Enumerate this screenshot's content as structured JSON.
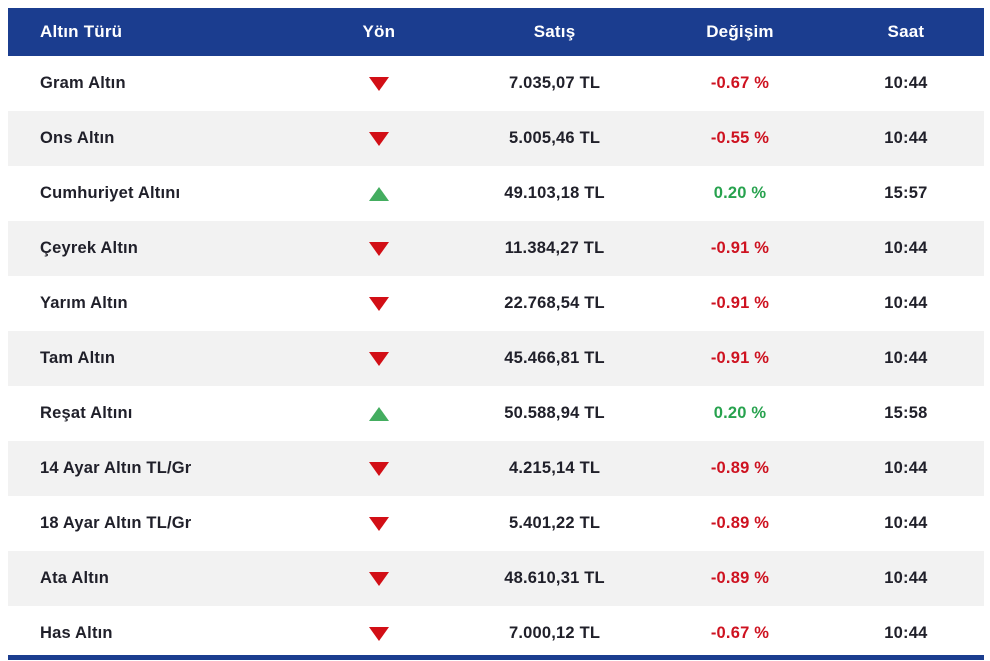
{
  "colors": {
    "header_bg": "#1b3d8f",
    "row_alt_bg": "#f2f2f2",
    "text": "#20202a",
    "down_arrow": "#d20f16",
    "down_text": "#ce1220",
    "up_arrow": "#44ad60",
    "up_text": "#27a24e"
  },
  "table": {
    "columns": [
      {
        "key": "type",
        "label": "Altın Türü"
      },
      {
        "key": "direction",
        "label": "Yön"
      },
      {
        "key": "price",
        "label": "Satış"
      },
      {
        "key": "change",
        "label": "Değişim"
      },
      {
        "key": "time",
        "label": "Saat"
      }
    ],
    "rows": [
      {
        "type": "Gram Altın",
        "direction": "down",
        "price": "7.035,07 TL",
        "change": "-0.67 %",
        "time": "10:44"
      },
      {
        "type": "Ons Altın",
        "direction": "down",
        "price": "5.005,46 TL",
        "change": "-0.55 %",
        "time": "10:44"
      },
      {
        "type": "Cumhuriyet Altını",
        "direction": "up",
        "price": "49.103,18 TL",
        "change": "0.20 %",
        "time": "15:57"
      },
      {
        "type": "Çeyrek Altın",
        "direction": "down",
        "price": "11.384,27 TL",
        "change": "-0.91 %",
        "time": "10:44"
      },
      {
        "type": "Yarım Altın",
        "direction": "down",
        "price": "22.768,54 TL",
        "change": "-0.91 %",
        "time": "10:44"
      },
      {
        "type": "Tam Altın",
        "direction": "down",
        "price": "45.466,81 TL",
        "change": "-0.91 %",
        "time": "10:44"
      },
      {
        "type": "Reşat Altını",
        "direction": "up",
        "price": "50.588,94 TL",
        "change": "0.20 %",
        "time": "15:58"
      },
      {
        "type": "14 Ayar Altın TL/Gr",
        "direction": "down",
        "price": "4.215,14 TL",
        "change": "-0.89 %",
        "time": "10:44"
      },
      {
        "type": "18 Ayar Altın TL/Gr",
        "direction": "down",
        "price": "5.401,22 TL",
        "change": "-0.89 %",
        "time": "10:44"
      },
      {
        "type": "Ata Altın",
        "direction": "down",
        "price": "48.610,31 TL",
        "change": "-0.89 %",
        "time": "10:44"
      },
      {
        "type": "Has Altın",
        "direction": "down",
        "price": "7.000,12 TL",
        "change": "-0.67 %",
        "time": "10:44"
      }
    ]
  }
}
